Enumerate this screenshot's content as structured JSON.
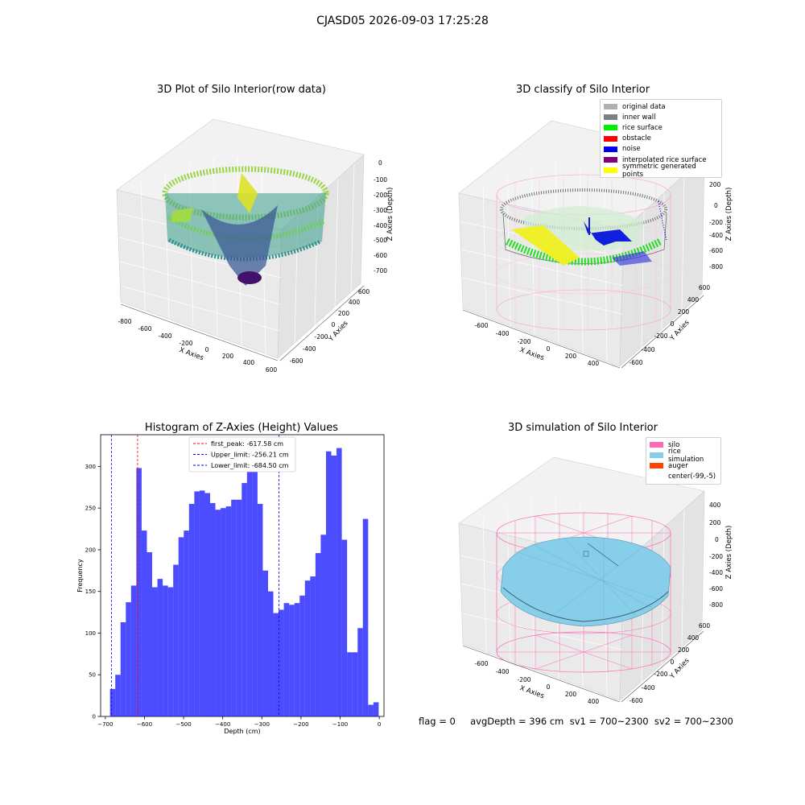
{
  "suptitle": "CJASD05 2026-09-03 17:25:28",
  "footer_text": "flag = 0     avgDepth = 396 cm  sv1 = 700~2300  sv2 = 700~2300",
  "panels": {
    "raw": {
      "title": "3D Plot of Silo Interior(row data)",
      "xlabel": "X Axies",
      "ylabel": "Y Axies",
      "zlabel": "Z Axies (Depth)",
      "xticks": [
        "-800",
        "-600",
        "-400",
        "-200",
        "0",
        "200",
        "400",
        "600"
      ],
      "yticks": [
        "-600",
        "-400",
        "-200",
        "0",
        "200",
        "400",
        "600"
      ],
      "zticks": [
        "0",
        "-100",
        "-200",
        "-300",
        "-400",
        "-500",
        "-600",
        "-700"
      ]
    },
    "classify": {
      "title": "3D classify of Silo Interior",
      "xlabel": "X Axies",
      "ylabel": "Y Axies",
      "zlabel": "Z Axies (Depth)",
      "xticks": [
        "-600",
        "-400",
        "-200",
        "0",
        "200",
        "400"
      ],
      "yticks": [
        "-600",
        "-400",
        "-200",
        "0",
        "200",
        "400",
        "600"
      ],
      "zticks": [
        "400",
        "200",
        "0",
        "-200",
        "-400",
        "-600",
        "-800"
      ],
      "legend": [
        {
          "label": "original data",
          "color": "#b0b0b0"
        },
        {
          "label": "inner wall",
          "color": "#808080"
        },
        {
          "label": "rice surface",
          "color": "#00ee00"
        },
        {
          "label": "obstacle",
          "color": "#ff0000"
        },
        {
          "label": "noise",
          "color": "#0000ee"
        },
        {
          "label": "interpolated rice surface",
          "color": "#800080"
        },
        {
          "label": "symmetric generated points",
          "color": "#ffff00"
        }
      ]
    },
    "simulation": {
      "title": "3D simulation of Silo Interior",
      "xlabel": "X Axies",
      "ylabel": "Y Axies",
      "zlabel": "Z Axies (Depth)",
      "xticks": [
        "-600",
        "-400",
        "-200",
        "0",
        "200",
        "400"
      ],
      "yticks": [
        "-600",
        "-400",
        "-200",
        "0",
        "200",
        "400",
        "600"
      ],
      "zticks": [
        "400",
        "200",
        "0",
        "-200",
        "-400",
        "-600",
        "-800"
      ],
      "legend": [
        {
          "label": "silo",
          "color": "#ff69b4"
        },
        {
          "label": "rice simulation",
          "color": "#87ceeb"
        },
        {
          "label": "auger",
          "color": "#ff4500"
        },
        {
          "label": "center(-99,-5)",
          "color": "#ffffff"
        }
      ]
    }
  },
  "chart_data": {
    "type": "bar",
    "title": "Histogram of Z-Axies (Height) Values",
    "xlabel": "Depth (cm)",
    "ylabel": "Frequency",
    "xlim": [
      -712,
      12
    ],
    "ylim": [
      0,
      338
    ],
    "xticks": [
      -700,
      -600,
      -500,
      -400,
      -300,
      -200,
      -100,
      0
    ],
    "yticks": [
      0,
      50,
      100,
      150,
      200,
      250,
      300
    ],
    "bin_width": 13.46,
    "x_start": -688,
    "bar_color": "#0000ff",
    "values": [
      33,
      50,
      113,
      137,
      157,
      298,
      223,
      197,
      155,
      165,
      157,
      155,
      182,
      215,
      223,
      255,
      270,
      271,
      268,
      256,
      248,
      250,
      252,
      260,
      260,
      280,
      300,
      322,
      255,
      175,
      150,
      124,
      128,
      136,
      134,
      136,
      145,
      163,
      168,
      196,
      218,
      318,
      313,
      322,
      212,
      77,
      77,
      106,
      237,
      14,
      17
    ],
    "vlines": [
      {
        "label": "first_peak: -617.58 cm",
        "x": -617.58,
        "color": "#ff0000"
      },
      {
        "label": "Upper_limit: -256.21 cm",
        "x": -256.21,
        "color": "#0000ff"
      },
      {
        "label": "Lower_limit: -684.50 cm",
        "x": -684.5,
        "color": "#0000ff"
      }
    ]
  }
}
